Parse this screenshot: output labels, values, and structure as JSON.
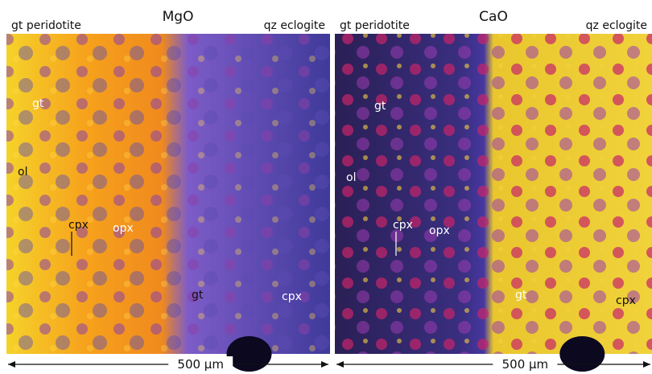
{
  "panels": [
    {
      "title": "MgO",
      "left_label": "gt peridotite",
      "right_label": "qz eclogite",
      "annotations": [
        {
          "text": "gt"
        },
        {
          "text": "ol"
        },
        {
          "text": "cpx"
        },
        {
          "text": "opx"
        },
        {
          "text": "gt"
        },
        {
          "text": "cpx"
        }
      ],
      "scale_bar": "500 μm"
    },
    {
      "title": "CaO",
      "left_label": "gt peridotite",
      "right_label": "qz eclogite",
      "annotations": [
        {
          "text": "gt"
        },
        {
          "text": "ol"
        },
        {
          "text": "cpx"
        },
        {
          "text": "opx"
        },
        {
          "text": "gt"
        },
        {
          "text": "cpx"
        }
      ],
      "scale_bar": "500 μm"
    }
  ]
}
